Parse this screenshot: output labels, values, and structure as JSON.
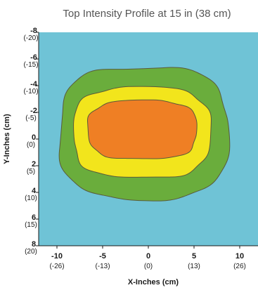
{
  "chart_data": {
    "type": "heatmap",
    "title": "Top Intensity Profile at 15 in (38 cm)",
    "xlabel": "X-Inches (cm)",
    "ylabel": "Y-Inches (cm)",
    "xlim": [
      -12,
      12
    ],
    "ylim": [
      -8,
      8
    ],
    "x_ticks": [
      {
        "value": -10,
        "label": "-10",
        "sublabel": "(-26)"
      },
      {
        "value": -5,
        "label": "-5",
        "sublabel": "(-13)"
      },
      {
        "value": 0,
        "label": "0",
        "sublabel": "(0)"
      },
      {
        "value": 5,
        "label": "5",
        "sublabel": "(13)"
      },
      {
        "value": 10,
        "label": "10",
        "sublabel": "(26)"
      }
    ],
    "y_ticks": [
      {
        "value": -8,
        "label": "-8",
        "sublabel": "(-20)"
      },
      {
        "value": -6,
        "label": "-6",
        "sublabel": "(-15)"
      },
      {
        "value": -4,
        "label": "-4",
        "sublabel": "(-10)"
      },
      {
        "value": -2,
        "label": "-2",
        "sublabel": "(-5)"
      },
      {
        "value": 0,
        "label": "0",
        "sublabel": "(0)"
      },
      {
        "value": 2,
        "label": "2",
        "sublabel": "(5)"
      },
      {
        "value": 4,
        "label": "4",
        "sublabel": "(10)"
      },
      {
        "value": 6,
        "label": "6",
        "sublabel": "(15)"
      },
      {
        "value": 8,
        "label": "8",
        "sublabel": "(20)"
      }
    ],
    "background_color": "#6fc3d6",
    "zones": [
      {
        "color": "#6aad3c",
        "x_range": [
          -9.7,
          8.7
        ],
        "y_range": [
          -5.4,
          4.5
        ]
      },
      {
        "color": "#f2e51c",
        "x_range": [
          -8.2,
          6.8
        ],
        "y_range": [
          -3.9,
          2.9
        ]
      },
      {
        "color": "#ef7f24",
        "x_range": [
          -6.6,
          5.3
        ],
        "y_range": [
          -2.9,
          1.5
        ]
      }
    ],
    "grid": false,
    "legend": "none"
  }
}
